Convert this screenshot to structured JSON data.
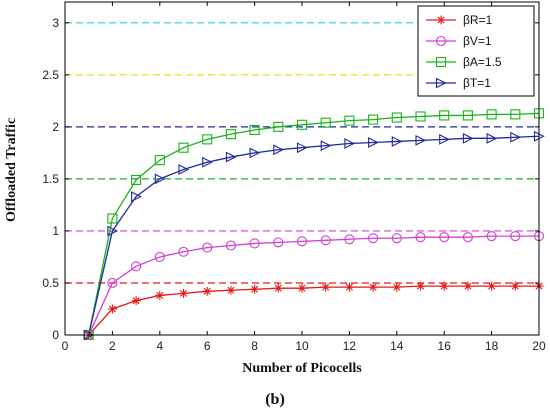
{
  "chart_data": {
    "type": "line",
    "xlabel": "Number of Picocells",
    "ylabel": "Offloaded Traffic",
    "caption": "(b)",
    "xlim": [
      0,
      20
    ],
    "ylim": [
      0,
      3.2
    ],
    "xticks": [
      "0",
      "2",
      "4",
      "6",
      "8",
      "10",
      "12",
      "14",
      "16",
      "18",
      "20"
    ],
    "yticks": [
      "0",
      "0.5",
      "1",
      "1.5",
      "2",
      "2.5",
      "3"
    ],
    "grid": false,
    "legend_position": "top-right",
    "x": [
      1,
      2,
      3,
      4,
      5,
      6,
      7,
      8,
      9,
      10,
      11,
      12,
      13,
      14,
      15,
      16,
      17,
      18,
      19,
      20
    ],
    "series": [
      {
        "name": "βR=1",
        "color": "#e8191b",
        "marker": "star",
        "values": [
          0,
          0.25,
          0.33,
          0.38,
          0.4,
          0.42,
          0.43,
          0.44,
          0.45,
          0.45,
          0.46,
          0.46,
          0.46,
          0.46,
          0.47,
          0.47,
          0.47,
          0.47,
          0.47,
          0.47
        ]
      },
      {
        "name": "βV=1",
        "color": "#d040d0",
        "marker": "circle",
        "values": [
          0,
          0.5,
          0.66,
          0.75,
          0.8,
          0.84,
          0.86,
          0.88,
          0.89,
          0.9,
          0.91,
          0.92,
          0.93,
          0.93,
          0.94,
          0.94,
          0.94,
          0.95,
          0.95,
          0.95
        ]
      },
      {
        "name": "βA=1.5",
        "color": "#19b319",
        "marker": "square",
        "values": [
          0,
          1.12,
          1.49,
          1.68,
          1.8,
          1.88,
          1.93,
          1.97,
          2.0,
          2.02,
          2.04,
          2.06,
          2.07,
          2.09,
          2.1,
          2.11,
          2.11,
          2.12,
          2.12,
          2.13
        ]
      },
      {
        "name": "βT=1",
        "color": "#1e2a9a",
        "marker": "triangle-right",
        "values": [
          0,
          1.0,
          1.33,
          1.5,
          1.59,
          1.66,
          1.71,
          1.75,
          1.78,
          1.8,
          1.82,
          1.84,
          1.85,
          1.86,
          1.87,
          1.88,
          1.89,
          1.89,
          1.9,
          1.91
        ]
      }
    ],
    "reference_lines": [
      {
        "y": 0.5,
        "color": "#e8191b"
      },
      {
        "y": 1.0,
        "color": "#d040d0"
      },
      {
        "y": 1.5,
        "color": "#19b319"
      },
      {
        "y": 2.0,
        "color": "#1e2a9a"
      },
      {
        "y": 2.5,
        "color": "#e6e619"
      },
      {
        "y": 3.0,
        "color": "#19d6d6"
      }
    ]
  }
}
